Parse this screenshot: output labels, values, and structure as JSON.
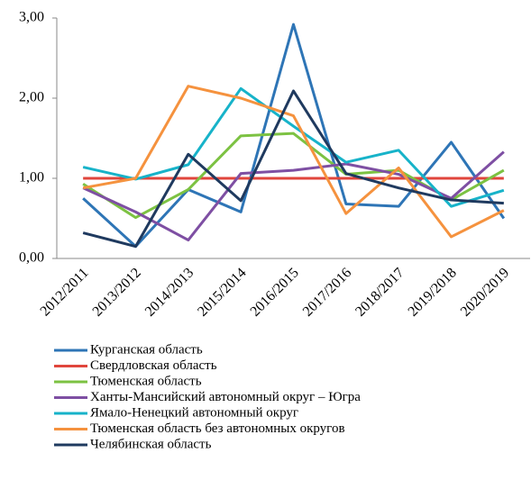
{
  "chart_data": {
    "type": "line",
    "categories": [
      "2012/2011",
      "2013/2012",
      "2014/2013",
      "2015/2014",
      "2016/2015",
      "2017/2016",
      "2018/2017",
      "2019/2018",
      "2020/2019"
    ],
    "series": [
      {
        "name": "Курганская область",
        "color": "#2e75b6",
        "values": [
          0.75,
          0.15,
          0.86,
          0.58,
          2.92,
          0.68,
          0.65,
          1.45,
          0.5
        ]
      },
      {
        "name": "Свердловская область",
        "color": "#e0463c",
        "values": [
          1.0,
          1.0,
          1.0,
          1.0,
          1.0,
          1.0,
          1.0,
          1.0,
          1.0
        ]
      },
      {
        "name": "Тюменская область",
        "color": "#7cc242",
        "values": [
          0.93,
          0.51,
          0.86,
          1.53,
          1.56,
          1.05,
          1.1,
          0.73,
          1.1
        ]
      },
      {
        "name": "Ханты-Мансийский автономный округ – Югра",
        "color": "#7e4fa3",
        "values": [
          0.88,
          0.58,
          0.23,
          1.06,
          1.1,
          1.18,
          1.05,
          0.75,
          1.33
        ]
      },
      {
        "name": "Ямало-Ненецкий автономный округ",
        "color": "#17b3c9",
        "values": [
          1.14,
          0.99,
          1.17,
          2.12,
          1.65,
          1.2,
          1.35,
          0.65,
          0.85
        ]
      },
      {
        "name": "Тюменская область без автономных округов",
        "color": "#f5923e",
        "values": [
          0.88,
          1.0,
          2.15,
          2.0,
          1.78,
          0.56,
          1.13,
          0.27,
          0.6
        ]
      },
      {
        "name": "Челябинская область",
        "color": "#1f3a5f",
        "values": [
          0.32,
          0.15,
          1.3,
          0.72,
          2.09,
          1.06,
          0.88,
          0.73,
          0.69
        ]
      }
    ],
    "ylim": [
      0,
      3
    ],
    "yticks": [
      {
        "value": 0,
        "label": "0,00"
      },
      {
        "value": 1,
        "label": "1,00"
      },
      {
        "value": 2,
        "label": "2,00"
      },
      {
        "value": 3,
        "label": "3,00"
      }
    ],
    "grid": false,
    "legend": "bottom"
  }
}
